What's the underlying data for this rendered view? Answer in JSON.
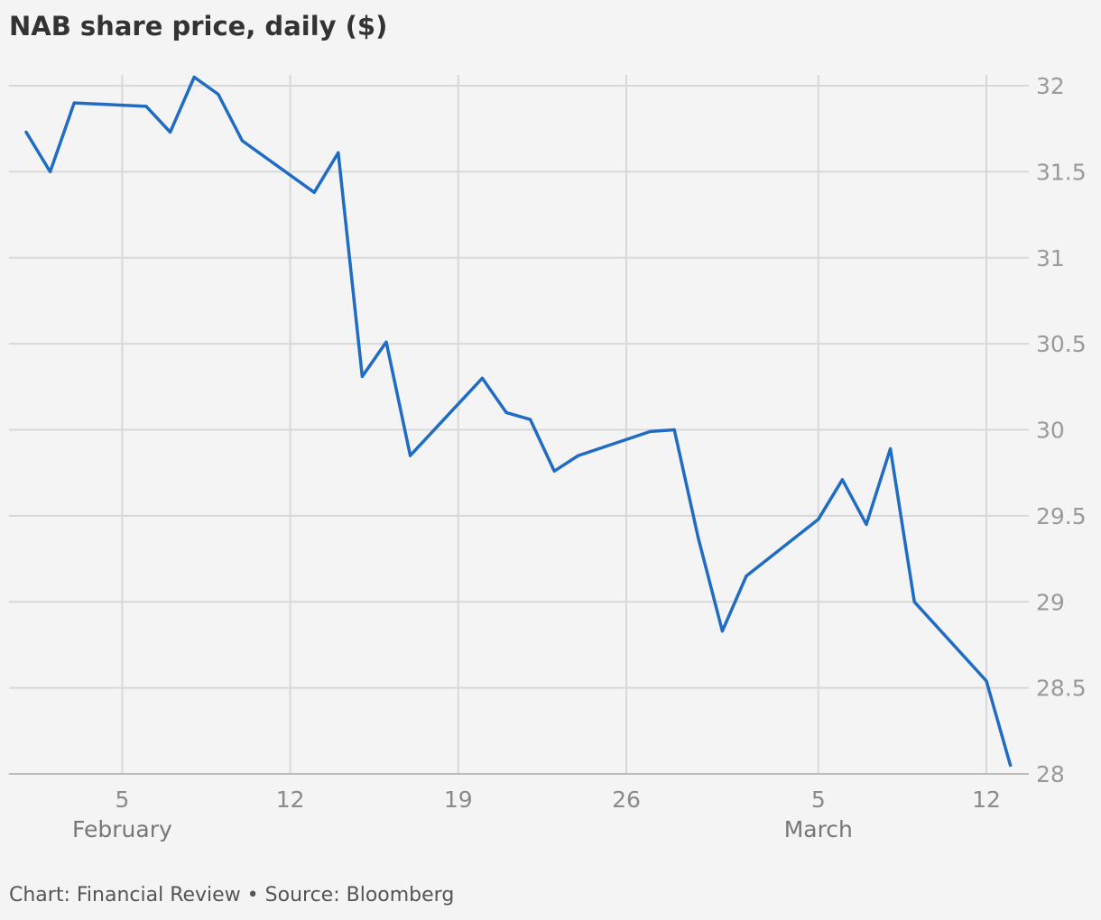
{
  "title": "NAB share price, daily ($)",
  "footer": "Chart: Financial Review • Source: Bloomberg",
  "colors": {
    "line": "#1f6cc2",
    "grid": "#d8d8d8",
    "axis": "#bbbbbb",
    "background": "#f4f4f4"
  },
  "chart_data": {
    "type": "line",
    "title": "NAB share price, daily ($)",
    "xlabel": "",
    "ylabel": "",
    "ylim": [
      28,
      32
    ],
    "y_ticks": [
      "32",
      "31.5",
      "31",
      "30.5",
      "30",
      "29.5",
      "29",
      "28.5",
      "28"
    ],
    "x_ticks": [
      {
        "date": "2024-02-05",
        "label": "5"
      },
      {
        "date": "2024-02-12",
        "label": "12"
      },
      {
        "date": "2024-02-19",
        "label": "19"
      },
      {
        "date": "2024-02-26",
        "label": "26"
      },
      {
        "date": "2024-03-05",
        "label": "5"
      },
      {
        "date": "2024-03-12",
        "label": "12"
      }
    ],
    "month_labels": [
      {
        "date": "2024-02-05",
        "label": "February"
      },
      {
        "date": "2024-03-05",
        "label": "March"
      }
    ],
    "grid": true,
    "y_axis_position": "right",
    "series": [
      {
        "color": "#1f6cc2",
        "points": [
          {
            "x": "2024-02-01",
            "y": 31.73
          },
          {
            "x": "2024-02-02",
            "y": 31.5
          },
          {
            "x": "2024-02-03",
            "y": 31.9
          },
          {
            "x": "2024-02-06",
            "y": 31.88
          },
          {
            "x": "2024-02-07",
            "y": 31.73
          },
          {
            "x": "2024-02-08",
            "y": 32.05
          },
          {
            "x": "2024-02-09",
            "y": 31.95
          },
          {
            "x": "2024-02-10",
            "y": 31.68
          },
          {
            "x": "2024-02-13",
            "y": 31.38
          },
          {
            "x": "2024-02-14",
            "y": 31.61
          },
          {
            "x": "2024-02-15",
            "y": 30.31
          },
          {
            "x": "2024-02-16",
            "y": 30.51
          },
          {
            "x": "2024-02-17",
            "y": 29.85
          },
          {
            "x": "2024-02-20",
            "y": 30.3
          },
          {
            "x": "2024-02-21",
            "y": 30.1
          },
          {
            "x": "2024-02-22",
            "y": 30.06
          },
          {
            "x": "2024-02-23",
            "y": 29.76
          },
          {
            "x": "2024-02-24",
            "y": 29.85
          },
          {
            "x": "2024-02-27",
            "y": 29.99
          },
          {
            "x": "2024-02-28",
            "y": 30.0
          },
          {
            "x": "2024-02-29",
            "y": 29.37
          },
          {
            "x": "2024-03-01",
            "y": 28.83
          },
          {
            "x": "2024-03-02",
            "y": 29.15
          },
          {
            "x": "2024-03-05",
            "y": 29.48
          },
          {
            "x": "2024-03-06",
            "y": 29.71
          },
          {
            "x": "2024-03-07",
            "y": 29.45
          },
          {
            "x": "2024-03-08",
            "y": 29.89
          },
          {
            "x": "2024-03-09",
            "y": 29.0
          },
          {
            "x": "2024-03-12",
            "y": 28.54
          },
          {
            "x": "2024-03-13",
            "y": 28.05
          }
        ]
      }
    ]
  }
}
